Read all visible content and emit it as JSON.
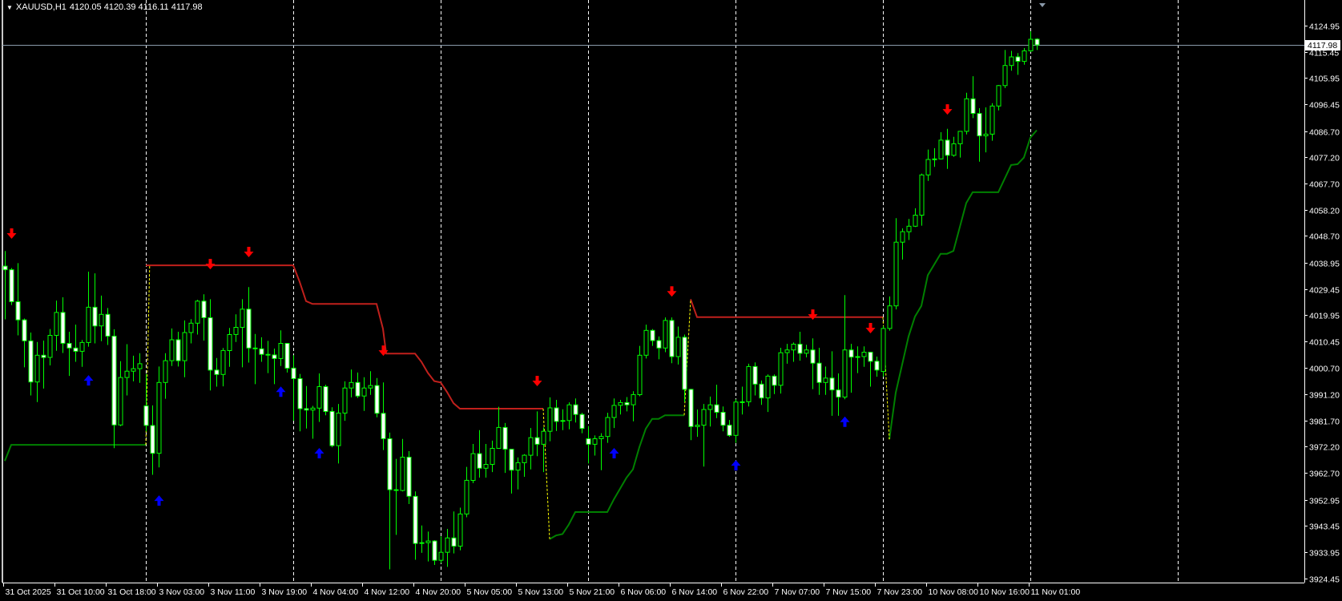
{
  "header": {
    "menu_icon": "triangle-down-icon",
    "symbol": "XAUUSD,H1",
    "ohlc": "4120.05 4120.39 4116.11 4117.98"
  },
  "current_price_label": "4117.98",
  "colors": {
    "background": "#000000",
    "candle": "#00ff00",
    "bear_body": "#ffffff",
    "resistance_line": "#c0201c",
    "support_line": "#008000",
    "transition_line": "#ffff00",
    "sell_arrow": "#ff0000",
    "buy_arrow": "#0000ff",
    "price_line": "#8a9aaa"
  },
  "chart_data": {
    "type": "candlestick",
    "symbol": "XAUUSD",
    "timeframe": "H1",
    "ylim": [
      3924.45,
      4124.95
    ],
    "grid": false,
    "y_ticks": [
      "4124.95",
      "4115.45",
      "4105.95",
      "4096.45",
      "4086.70",
      "4077.20",
      "4067.70",
      "4058.20",
      "4048.70",
      "4038.95",
      "4029.45",
      "4019.95",
      "4010.45",
      "4000.70",
      "3991.20",
      "3981.70",
      "3972.20",
      "3962.70",
      "3952.95",
      "3943.45",
      "3933.95",
      "3924.45"
    ],
    "x_tick_every_bars": 8,
    "x_ticks": [
      "31 Oct 2025",
      "31 Oct 10:00",
      "31 Oct 18:00",
      "3 Nov 03:00",
      "3 Nov 11:00",
      "3 Nov 19:00",
      "4 Nov 04:00",
      "4 Nov 12:00",
      "4 Nov 20:00",
      "5 Nov 05:00",
      "5 Nov 13:00",
      "5 Nov 21:00",
      "6 Nov 06:00",
      "6 Nov 14:00",
      "6 Nov 22:00",
      "7 Nov 07:00",
      "7 Nov 15:00",
      "7 Nov 23:00",
      "10 Nov 08:00",
      "10 Nov 16:00",
      "11 Nov 01:00"
    ],
    "day_separators_bar": [
      22,
      45,
      68,
      91,
      114,
      137,
      160,
      183
    ],
    "ohlc": [
      [
        4037.7,
        4043.2,
        4018.4,
        4036.4
      ],
      [
        4036.4,
        4037.0,
        4023.6,
        4024.8
      ],
      [
        4024.8,
        4038.8,
        4012.6,
        4018.2
      ],
      [
        4018.2,
        4018.7,
        4001.0,
        4010.6
      ],
      [
        4010.6,
        4013.6,
        3990.8,
        3995.7
      ],
      [
        3995.7,
        4010.2,
        3988.4,
        4005.4
      ],
      [
        4005.4,
        4010.7,
        3993.3,
        4004.6
      ],
      [
        4004.6,
        4014.9,
        4001.7,
        4012.6
      ],
      [
        4012.6,
        4025.2,
        4007.0,
        4020.9
      ],
      [
        4020.9,
        4026.4,
        4006.2,
        4009.7
      ],
      [
        4009.7,
        4013.9,
        3997.9,
        4008.0
      ],
      [
        4008.0,
        4016.5,
        4003.0,
        4006.8
      ],
      [
        4006.8,
        4010.9,
        4001.2,
        4010.0
      ],
      [
        4010.0,
        4035.7,
        4008.5,
        4022.8
      ],
      [
        4022.8,
        4035.1,
        4009.7,
        4016.0
      ],
      [
        4016.0,
        4027.0,
        4010.5,
        4020.2
      ],
      [
        4020.2,
        4022.5,
        4009.1,
        4012.3
      ],
      [
        4012.3,
        4014.8,
        3971.7,
        3980.1
      ],
      [
        3980.1,
        4003.2,
        3979.7,
        3997.3
      ],
      [
        3997.3,
        4009.4,
        3990.8,
        3999.6
      ],
      [
        3999.6,
        4005.2,
        3995.9,
        4000.5
      ],
      [
        4000.5,
        4006.1,
        3995.4,
        4002.3
      ],
      [
        3987.0,
        3998.6,
        3977.8,
        3979.9
      ],
      [
        3979.9,
        3987.2,
        3962.0,
        3969.8
      ],
      [
        3969.8,
        4001.3,
        3964.7,
        3995.5
      ],
      [
        3995.5,
        4006.1,
        3989.6,
        4003.4
      ],
      [
        4003.4,
        4015.1,
        4001.5,
        4011.0
      ],
      [
        4011.0,
        4013.9,
        4001.3,
        4003.4
      ],
      [
        4003.4,
        4018.0,
        3997.4,
        4013.6
      ],
      [
        4013.6,
        4018.5,
        4009.7,
        4017.0
      ],
      [
        4017.0,
        4025.5,
        4012.9,
        4025.0
      ],
      [
        4025.0,
        4027.5,
        4010.7,
        4019.0
      ],
      [
        4019.0,
        4025.7,
        3992.6,
        4000.0
      ],
      [
        4000.0,
        4004.4,
        3994.0,
        3998.4
      ],
      [
        3998.4,
        4008.0,
        3994.1,
        4007.1
      ],
      [
        4007.1,
        4015.3,
        4001.2,
        4012.9
      ],
      [
        4012.9,
        4020.2,
        4010.2,
        4015.5
      ],
      [
        4015.5,
        4025.7,
        4001.0,
        4022.1
      ],
      [
        4022.1,
        4030.1,
        4002.7,
        4008.0
      ],
      [
        4008.0,
        4013.1,
        3994.9,
        4007.7
      ],
      [
        4007.7,
        4011.9,
        4003.0,
        4005.7
      ],
      [
        4005.7,
        4010.6,
        3998.9,
        4005.5
      ],
      [
        4005.5,
        4007.8,
        3994.9,
        4004.2
      ],
      [
        4004.2,
        4014.4,
        4001.5,
        4009.7
      ],
      [
        4009.7,
        4009.7,
        3999.1,
        4000.7
      ],
      [
        4000.7,
        4005.4,
        3981.6,
        3996.9
      ],
      [
        3996.9,
        3998.6,
        3977.8,
        3986.0
      ],
      [
        3986.0,
        3994.2,
        3978.8,
        3985.5
      ],
      [
        3985.5,
        3987.0,
        3975.1,
        3986.2
      ],
      [
        3986.2,
        3998.8,
        3981.2,
        3994.0
      ],
      [
        3994.0,
        3994.7,
        3983.6,
        3985.0
      ],
      [
        3985.0,
        3986.5,
        3972.0,
        3972.6
      ],
      [
        3972.6,
        3987.7,
        3966.1,
        3984.4
      ],
      [
        3984.4,
        3995.9,
        3981.6,
        3993.5
      ],
      [
        3993.5,
        4000.2,
        3990.1,
        3995.5
      ],
      [
        3995.5,
        3999.1,
        3989.9,
        3990.6
      ],
      [
        3990.6,
        3997.4,
        3985.2,
        3993.5
      ],
      [
        3993.5,
        3999.6,
        3991.0,
        3994.4
      ],
      [
        3994.4,
        3997.1,
        3982.9,
        3984.3
      ],
      [
        3984.3,
        3995.5,
        3971.0,
        3975.1
      ],
      [
        3975.1,
        3977.3,
        3927.7,
        3956.6
      ],
      [
        3956.6,
        3967.8,
        3940.2,
        3956.3
      ],
      [
        3956.3,
        3975.0,
        3956.0,
        3968.4
      ],
      [
        3968.4,
        3970.6,
        3951.4,
        3954.2
      ],
      [
        3954.2,
        3956.0,
        3931.2,
        3937.1
      ],
      [
        3937.1,
        3943.6,
        3933.7,
        3937.4
      ],
      [
        3937.4,
        3941.4,
        3930.6,
        3938.0
      ],
      [
        3938.0,
        3938.3,
        3929.3,
        3931.0
      ],
      [
        3931.0,
        3939.7,
        3930.0,
        3933.9
      ],
      [
        3933.9,
        3942.4,
        3928.6,
        3939.1
      ],
      [
        3939.1,
        3948.7,
        3933.5,
        3936.1
      ],
      [
        3936.1,
        3950.1,
        3934.6,
        3947.8
      ],
      [
        3947.8,
        3964.9,
        3946.6,
        3960.0
      ],
      [
        3960.0,
        3973.2,
        3959.0,
        3969.7
      ],
      [
        3969.7,
        3978.2,
        3961.0,
        3964.4
      ],
      [
        3964.4,
        3973.2,
        3961.0,
        3965.8
      ],
      [
        3965.8,
        3974.4,
        3963.0,
        3971.6
      ],
      [
        3971.6,
        3986.7,
        3971.6,
        3979.2
      ],
      [
        3979.2,
        3980.8,
        3962.7,
        3971.3
      ],
      [
        3971.3,
        3971.1,
        3955.2,
        3963.7
      ],
      [
        3963.7,
        3968.3,
        3956.7,
        3966.4
      ],
      [
        3966.4,
        3969.5,
        3961.3,
        3969.1
      ],
      [
        3969.1,
        3979.0,
        3964.0,
        3975.5
      ],
      [
        3975.5,
        3985.0,
        3968.8,
        3973.1
      ],
      [
        3973.1,
        3979.2,
        3963.0,
        3977.8
      ],
      [
        3977.8,
        3990.1,
        3974.2,
        3986.3
      ],
      [
        3986.3,
        3989.2,
        3977.9,
        3981.4
      ],
      [
        3981.4,
        3985.8,
        3978.2,
        3981.7
      ],
      [
        3981.7,
        3988.3,
        3978.5,
        3987.4
      ],
      [
        3987.4,
        3989.7,
        3981.0,
        3983.9
      ],
      [
        3983.9,
        3984.5,
        3977.1,
        3978.8
      ],
      [
        3975.1,
        3979.7,
        3966.1,
        3973.1
      ],
      [
        3973.1,
        3976.3,
        3969.0,
        3975.1
      ],
      [
        3975.1,
        3977.1,
        3963.7,
        3975.9
      ],
      [
        3975.9,
        3984.5,
        3973.6,
        3982.8
      ],
      [
        3982.8,
        3989.7,
        3979.0,
        3987.2
      ],
      [
        3987.2,
        3989.2,
        3983.9,
        3988.2
      ],
      [
        3988.2,
        3990.2,
        3985.0,
        3987.4
      ],
      [
        3987.4,
        3992.3,
        3981.4,
        3991.1
      ],
      [
        3991.1,
        4008.8,
        3990.5,
        4005.4
      ],
      [
        4005.4,
        4016.5,
        4004.2,
        4014.4
      ],
      [
        4014.4,
        4014.9,
        4008.8,
        4010.7
      ],
      [
        4010.7,
        4012.2,
        4003.9,
        4008.0
      ],
      [
        4008.0,
        4019.1,
        4006.5,
        4018.0
      ],
      [
        4018.0,
        4019.1,
        4002.5,
        4004.9
      ],
      [
        4004.9,
        4015.8,
        4002.0,
        4011.9
      ],
      [
        4011.9,
        4012.9,
        3988.4,
        3993.0
      ],
      [
        3993.0,
        3993.2,
        3974.6,
        3979.5
      ],
      [
        3979.5,
        3985.7,
        3975.8,
        3980.0
      ],
      [
        3980.0,
        3987.7,
        3965.0,
        3985.7
      ],
      [
        3985.7,
        3990.4,
        3979.5,
        3987.4
      ],
      [
        3987.4,
        3994.7,
        3982.6,
        3984.7
      ],
      [
        3984.7,
        3986.8,
        3977.8,
        3980.0
      ],
      [
        3980.0,
        3981.9,
        3975.8,
        3976.3
      ],
      [
        3976.3,
        3989.4,
        3973.6,
        3988.4
      ],
      [
        3988.4,
        3994.0,
        3983.9,
        3988.5
      ],
      [
        3988.5,
        4002.3,
        3986.8,
        4001.3
      ],
      [
        4001.3,
        4002.8,
        3990.8,
        3994.9
      ],
      [
        3994.9,
        3996.2,
        3987.4,
        3989.9
      ],
      [
        3989.9,
        3998.4,
        3984.8,
        3997.8
      ],
      [
        3997.8,
        3998.4,
        3991.3,
        3994.5
      ],
      [
        3994.5,
        4008.1,
        3991.5,
        4006.3
      ],
      [
        4006.3,
        4009.5,
        4002.3,
        4007.3
      ],
      [
        4007.3,
        4010.0,
        4003.0,
        4009.4
      ],
      [
        4009.4,
        4013.9,
        4003.4,
        4006.1
      ],
      [
        4006.1,
        4009.2,
        4004.6,
        4007.3
      ],
      [
        4007.3,
        4011.5,
        3993.1,
        4002.5
      ],
      [
        4002.5,
        4008.1,
        3991.0,
        3995.5
      ],
      [
        3995.5,
        4001.3,
        3991.0,
        3997.1
      ],
      [
        3997.1,
        4006.8,
        3983.4,
        3992.8
      ],
      [
        3992.8,
        3998.8,
        3983.4,
        3990.2
      ],
      [
        3990.2,
        4027.2,
        3989.4,
        4007.3
      ],
      [
        4007.3,
        4009.5,
        3991.8,
        4004.7
      ],
      [
        4004.7,
        4008.6,
        3998.9,
        4004.9
      ],
      [
        4004.9,
        4008.6,
        4001.2,
        4006.5
      ],
      [
        4006.5,
        4006.5,
        3994.0,
        4003.2
      ],
      [
        4003.2,
        4004.9,
        3997.6,
        4000.0
      ],
      [
        3999.5,
        4016.0,
        3997.6,
        4015.1
      ],
      [
        4015.1,
        4026.7,
        4014.3,
        4023.3
      ],
      [
        4023.3,
        4055.1,
        4022.0,
        4046.4
      ],
      [
        4046.4,
        4051.4,
        4040.1,
        4050.2
      ],
      [
        4050.2,
        4054.8,
        4047.2,
        4052.2
      ],
      [
        4052.2,
        4058.7,
        4051.9,
        4056.2
      ],
      [
        4056.2,
        4071.3,
        4052.4,
        4070.8
      ],
      [
        4070.8,
        4080.0,
        4068.6,
        4076.4
      ],
      [
        4076.4,
        4080.5,
        4073.7,
        4076.6
      ],
      [
        4076.6,
        4086.3,
        4076.4,
        4083.4
      ],
      [
        4083.4,
        4087.5,
        4073.0,
        4077.9
      ],
      [
        4077.9,
        4084.6,
        4077.4,
        4082.1
      ],
      [
        4082.1,
        4086.6,
        4077.1,
        4086.6
      ],
      [
        4086.6,
        4100.6,
        4085.5,
        4098.4
      ],
      [
        4098.4,
        4106.6,
        4091.4,
        4093.1
      ],
      [
        4093.1,
        4095.0,
        4075.6,
        4085.0
      ],
      [
        4085.0,
        4095.3,
        4079.0,
        4085.6
      ],
      [
        4085.6,
        4096.8,
        4083.2,
        4095.8
      ],
      [
        4095.8,
        4103.4,
        4094.2,
        4103.2
      ],
      [
        4103.2,
        4116.1,
        4102.3,
        4110.5
      ],
      [
        4110.5,
        4115.8,
        4108.6,
        4113.6
      ],
      [
        4113.6,
        4115.0,
        4107.1,
        4112.0
      ],
      [
        4112.0,
        4116.8,
        4110.8,
        4115.8
      ],
      [
        4115.8,
        4122.9,
        4115.4,
        4120.0
      ],
      [
        4120.05,
        4120.39,
        4116.11,
        4117.98
      ]
    ],
    "current_price": 4117.98,
    "resistance_lines": [
      [
        [
          22,
          4038
        ],
        [
          45,
          4038
        ],
        [
          46,
          4032
        ],
        [
          47,
          4025
        ],
        [
          48,
          4024
        ],
        [
          58,
          4024
        ],
        [
          59,
          4015
        ],
        [
          59.5,
          4006
        ],
        [
          64,
          4006
        ],
        [
          65,
          4003
        ],
        [
          66,
          3999
        ],
        [
          67,
          3996
        ],
        [
          68,
          3995.5
        ],
        [
          69,
          3992
        ],
        [
          70,
          3988
        ],
        [
          71,
          3986
        ],
        [
          84,
          3986
        ]
      ],
      [
        [
          107,
          4025.7
        ],
        [
          108,
          4019.2
        ],
        [
          137,
          4019.2
        ]
      ]
    ],
    "support_lines": [
      [
        [
          0,
          3967
        ],
        [
          1,
          3972.9
        ],
        [
          22,
          3972.9
        ]
      ],
      [
        [
          85,
          3938.7
        ],
        [
          86,
          3940
        ],
        [
          87,
          3940.5
        ],
        [
          88,
          3944
        ],
        [
          89,
          3948.5
        ],
        [
          94,
          3948.5
        ],
        [
          95,
          3953
        ],
        [
          96,
          3957
        ],
        [
          97,
          3961
        ],
        [
          98,
          3964
        ],
        [
          99,
          3972
        ],
        [
          100,
          3978.7
        ],
        [
          101,
          3982.3
        ],
        [
          102,
          3982.3
        ],
        [
          103,
          3983.6
        ],
        [
          106,
          3983.6
        ]
      ],
      [
        [
          138,
          3974.9
        ],
        [
          139,
          3991.8
        ],
        [
          141,
          4012.2
        ],
        [
          142,
          4019.4
        ],
        [
          143,
          4023.3
        ],
        [
          144,
          4034.4
        ],
        [
          146,
          4042.2
        ],
        [
          147,
          4042.2
        ],
        [
          148,
          4043.2
        ],
        [
          150,
          4060.6
        ],
        [
          151,
          4064.5
        ],
        [
          155,
          4064.5
        ],
        [
          157,
          4074.4
        ],
        [
          158,
          4074.7
        ],
        [
          159,
          4077.1
        ],
        [
          160,
          4084.3
        ],
        [
          161,
          4087
        ]
      ]
    ],
    "transition_lines": [
      [
        [
          22,
          3972.9
        ],
        [
          22.6,
          4038
        ]
      ],
      [
        [
          84,
          3986
        ],
        [
          85,
          3938.7
        ]
      ],
      [
        [
          106,
          3983.6
        ],
        [
          107,
          4025.7
        ]
      ],
      [
        [
          137,
          4019.2
        ],
        [
          138,
          3974.9
        ]
      ]
    ],
    "sell_arrows": [
      [
        1,
        4048.8
      ],
      [
        32,
        4037.7
      ],
      [
        38,
        4042.1
      ],
      [
        59,
        4006.3
      ],
      [
        83,
        3995.3
      ],
      [
        104,
        4027.8
      ],
      [
        126,
        4019.4
      ],
      [
        135,
        4014.5
      ],
      [
        147,
        4093.8
      ]
    ],
    "buy_arrows": [
      [
        13,
        3997
      ],
      [
        24,
        3953.4
      ],
      [
        43,
        3992.9
      ],
      [
        49,
        3970.6
      ],
      [
        95,
        3970.6
      ],
      [
        114,
        3966.2
      ],
      [
        131,
        3982
      ]
    ]
  }
}
